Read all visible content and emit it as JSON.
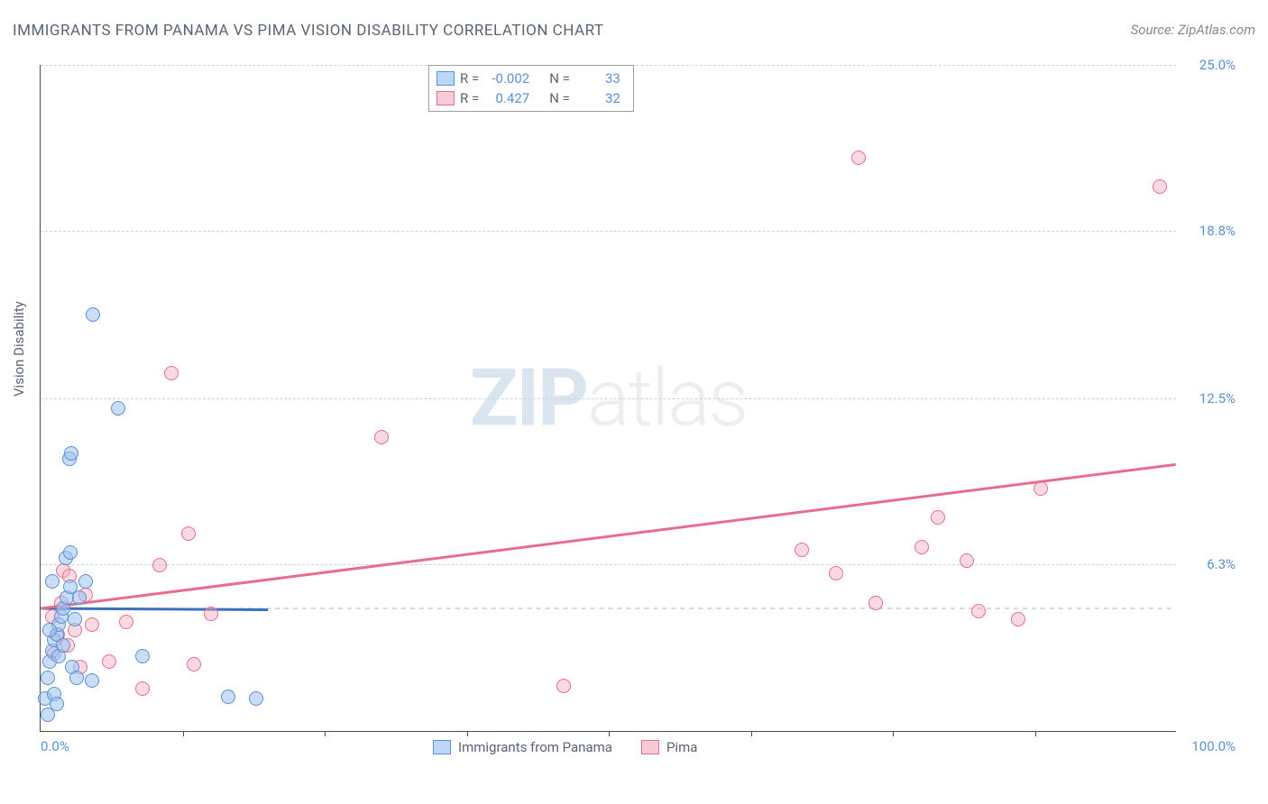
{
  "chart": {
    "title": "IMMIGRANTS FROM PANAMA VS PIMA VISION DISABILITY CORRELATION CHART",
    "source_label": "Source: ZipAtlas.com",
    "y_axis_label": "Vision Disability",
    "background_color": "#ffffff",
    "grid_color": "#c5d5e8",
    "axis_color": "#4a4a4a",
    "text_color": "#5a6472",
    "value_color": "#5b8fd9",
    "title_fontsize": 17,
    "label_fontsize": 15,
    "xlim": [
      0,
      100
    ],
    "ylim": [
      0,
      25
    ],
    "y_ticks": [
      {
        "v": 25.0,
        "label": "25.0%"
      },
      {
        "v": 18.8,
        "label": "18.8%"
      },
      {
        "v": 12.5,
        "label": "12.5%"
      },
      {
        "v": 6.3,
        "label": "6.3%"
      }
    ],
    "x_min_label": "0.0%",
    "x_max_label": "100.0%",
    "x_minor_ticks": [
      12.5,
      25,
      37.5,
      50,
      62.5,
      75,
      87.5
    ],
    "watermark_a": "ZIP",
    "watermark_b": "atlas",
    "series": {
      "panama": {
        "label": "Immigrants from Panama",
        "swatch_fill": "#bcd6f5",
        "swatch_border": "#5b8fd9",
        "point_fill": "rgba(155,195,240,0.55)",
        "point_border": "#5b8fd9",
        "line_color": "#3b6fc0",
        "R_label": "R =",
        "R_value": "-0.002",
        "N_label": "N =",
        "N_value": "33",
        "regression": {
          "x1": 0,
          "y1": 4.6,
          "x2": 20,
          "y2": 4.55
        },
        "points": [
          {
            "x": 0.4,
            "y": 1.2
          },
          {
            "x": 0.6,
            "y": 2.0
          },
          {
            "x": 0.8,
            "y": 2.6
          },
          {
            "x": 1.0,
            "y": 3.0
          },
          {
            "x": 1.2,
            "y": 3.4
          },
          {
            "x": 1.4,
            "y": 3.6
          },
          {
            "x": 1.6,
            "y": 4.0
          },
          {
            "x": 1.8,
            "y": 4.3
          },
          {
            "x": 2.0,
            "y": 4.6
          },
          {
            "x": 2.3,
            "y": 5.0
          },
          {
            "x": 2.6,
            "y": 5.4
          },
          {
            "x": 1.0,
            "y": 5.6
          },
          {
            "x": 2.8,
            "y": 2.4
          },
          {
            "x": 3.2,
            "y": 2.0
          },
          {
            "x": 4.5,
            "y": 1.9
          },
          {
            "x": 2.2,
            "y": 6.5
          },
          {
            "x": 2.6,
            "y": 6.7
          },
          {
            "x": 4.0,
            "y": 5.6
          },
          {
            "x": 9.0,
            "y": 2.8
          },
          {
            "x": 1.2,
            "y": 1.4
          },
          {
            "x": 1.4,
            "y": 1.0
          },
          {
            "x": 2.5,
            "y": 10.2
          },
          {
            "x": 2.7,
            "y": 10.4
          },
          {
            "x": 6.8,
            "y": 12.1
          },
          {
            "x": 4.6,
            "y": 15.6
          },
          {
            "x": 16.5,
            "y": 1.3
          },
          {
            "x": 19.0,
            "y": 1.2
          },
          {
            "x": 0.6,
            "y": 0.6
          },
          {
            "x": 0.8,
            "y": 3.8
          },
          {
            "x": 1.6,
            "y": 2.8
          },
          {
            "x": 2.0,
            "y": 3.2
          },
          {
            "x": 3.0,
            "y": 4.2
          },
          {
            "x": 3.4,
            "y": 5.0
          }
        ]
      },
      "pima": {
        "label": "Pima",
        "swatch_fill": "#f7cbd6",
        "swatch_border": "#e86d8d",
        "point_fill": "rgba(245,170,190,0.45)",
        "point_border": "#e86d8d",
        "line_color": "#e86d8d",
        "R_label": "R =",
        "R_value": "0.427",
        "N_label": "N =",
        "N_value": "32",
        "regression": {
          "x1": 0,
          "y1": 4.6,
          "x2": 100,
          "y2": 10.0
        },
        "points": [
          {
            "x": 1.0,
            "y": 4.3
          },
          {
            "x": 1.5,
            "y": 3.6
          },
          {
            "x": 2.0,
            "y": 6.0
          },
          {
            "x": 2.5,
            "y": 5.8
          },
          {
            "x": 3.0,
            "y": 3.8
          },
          {
            "x": 3.5,
            "y": 2.4
          },
          {
            "x": 4.5,
            "y": 4.0
          },
          {
            "x": 6.0,
            "y": 2.6
          },
          {
            "x": 7.5,
            "y": 4.1
          },
          {
            "x": 9.0,
            "y": 1.6
          },
          {
            "x": 10.5,
            "y": 6.2
          },
          {
            "x": 11.5,
            "y": 13.4
          },
          {
            "x": 13.0,
            "y": 7.4
          },
          {
            "x": 13.5,
            "y": 2.5
          },
          {
            "x": 15.0,
            "y": 4.4
          },
          {
            "x": 30.0,
            "y": 11.0
          },
          {
            "x": 46.0,
            "y": 1.7
          },
          {
            "x": 67.0,
            "y": 6.8
          },
          {
            "x": 70.0,
            "y": 5.9
          },
          {
            "x": 72.0,
            "y": 21.5
          },
          {
            "x": 73.5,
            "y": 4.8
          },
          {
            "x": 77.5,
            "y": 6.9
          },
          {
            "x": 79.0,
            "y": 8.0
          },
          {
            "x": 81.5,
            "y": 6.4
          },
          {
            "x": 82.5,
            "y": 4.5
          },
          {
            "x": 86.0,
            "y": 4.2
          },
          {
            "x": 88.0,
            "y": 9.1
          },
          {
            "x": 98.5,
            "y": 20.4
          },
          {
            "x": 1.2,
            "y": 2.9
          },
          {
            "x": 4.0,
            "y": 5.1
          },
          {
            "x": 1.8,
            "y": 4.8
          },
          {
            "x": 2.4,
            "y": 3.2
          }
        ]
      }
    }
  }
}
